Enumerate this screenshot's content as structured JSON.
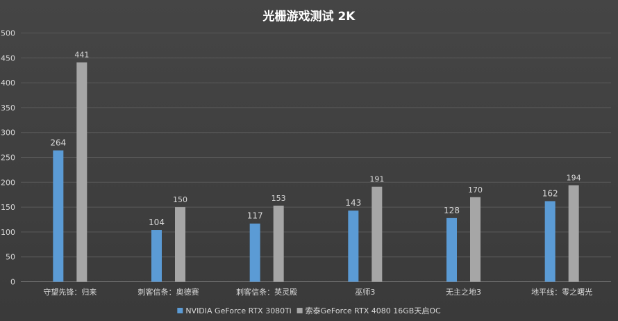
{
  "chart_data": {
    "type": "bar",
    "title": "光栅游戏测试 2K",
    "xlabel": "",
    "ylabel": "",
    "ylim": [
      0,
      500
    ],
    "yticks": [
      0,
      50,
      100,
      150,
      200,
      250,
      300,
      350,
      400,
      450,
      500
    ],
    "categories": [
      "守望先锋：归来",
      "刺客信条：奥德赛",
      "刺客信条：英灵殿",
      "巫师3",
      "无主之地3",
      "地平线：零之曙光"
    ],
    "series": [
      {
        "name": "NVIDIA GeForce RTX 3080Ti",
        "values": [
          264,
          104,
          117,
          143,
          128,
          162
        ],
        "color": "#5b9bd5"
      },
      {
        "name": "索泰GeForce RTX 4080 16GB天启OC",
        "values": [
          441,
          150,
          153,
          191,
          170,
          194
        ],
        "color": "#a6a6a6"
      }
    ],
    "grid": true,
    "legend_position": "bottom",
    "colors": {
      "background": "#404040",
      "grid": "#5a5a5a",
      "text": "#d9d9d9",
      "title": "#ffffff"
    }
  }
}
